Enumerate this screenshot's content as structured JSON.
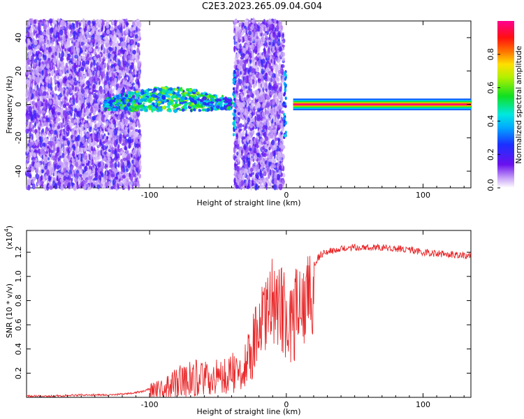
{
  "title": "C2E3.2023.265.09.04.G04",
  "colors": {
    "snr_line": "#e8282a",
    "scatter_purple": "#7a2cf0",
    "scatter_light": "#c9a8f2",
    "axis": "#000000"
  },
  "chart_data": [
    {
      "type": "heatmap",
      "name": "spectrogram",
      "xlabel": "Height of straight line (km)",
      "ylabel": "Frequency (Hz)",
      "xlim": [
        -190,
        135
      ],
      "ylim": [
        -50,
        50
      ],
      "xticks": [
        -100,
        0,
        100
      ],
      "yticks": [
        -40,
        -20,
        0,
        20,
        40
      ],
      "colorbar": {
        "label": "Normalized spectral amplitude",
        "range": [
          0.0,
          1.0
        ],
        "ticks": [
          "0.0",
          "0.2",
          "0.4",
          "0.6",
          "0.8"
        ],
        "colormap": "rainbow (white-violet-blue-cyan-green-yellow-red-magenta)"
      },
      "regions": [
        {
          "x_from": -190,
          "x_to": -107,
          "desc": "broadband noise, amplitude 0.1-0.3"
        },
        {
          "x_from": -133,
          "x_to": -40,
          "freq_hz": 0,
          "amplitude": 0.45,
          "desc": "weak carrier band"
        },
        {
          "x_from": -38,
          "x_to": -2,
          "desc": "broadband noise, amplitude 0.1-0.3"
        },
        {
          "x_from": 5,
          "x_to": 135,
          "freq_hz": 0,
          "amplitude": 1.0,
          "desc": "strong carrier line"
        }
      ]
    },
    {
      "type": "line",
      "name": "snr",
      "xlabel": "Height of straight line (km)",
      "ylabel": "SNR (10 * v/v)",
      "yscale_label": "(x10",
      "yscale_exp": "4",
      "xlim": [
        -190,
        135
      ],
      "ylim": [
        0,
        1.38
      ],
      "xticks": [
        -100,
        0,
        100
      ],
      "yticks": [
        0.2,
        0.4,
        0.6,
        0.8,
        1.0,
        1.2
      ],
      "series": [
        {
          "x": [
            -190,
            -170,
            -150,
            -130,
            -115,
            -105,
            -98,
            -90,
            -80,
            -70,
            -60,
            -50,
            -40,
            -30,
            -25,
            -20,
            -15,
            -12,
            -5,
            0,
            5,
            10,
            15,
            20,
            25,
            30,
            40,
            50,
            60,
            70,
            80,
            90,
            100,
            110,
            120,
            135
          ],
          "y": [
            0.01,
            0.01,
            0.02,
            0.02,
            0.03,
            0.05,
            0.08,
            0.12,
            0.2,
            0.25,
            0.25,
            0.25,
            0.3,
            0.38,
            0.55,
            0.75,
            0.8,
            1.05,
            0.95,
            0.85,
            0.9,
            0.95,
            1.0,
            1.1,
            1.18,
            1.2,
            1.23,
            1.24,
            1.24,
            1.24,
            1.23,
            1.22,
            1.2,
            1.19,
            1.18,
            1.17
          ]
        }
      ]
    }
  ]
}
